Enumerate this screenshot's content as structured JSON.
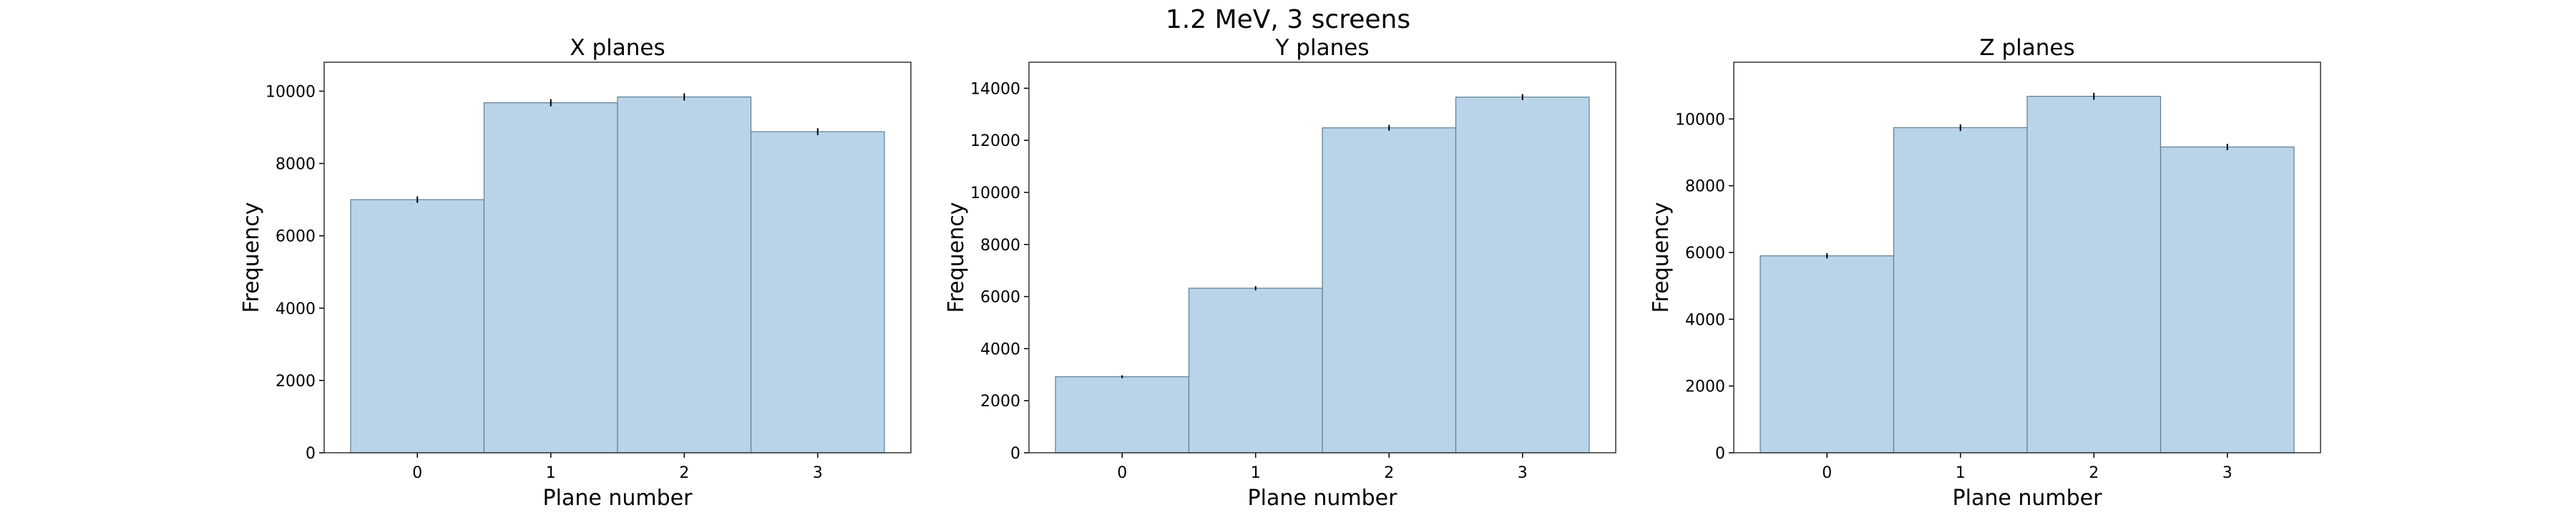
{
  "suptitle": "1.2 MeV, 3 screens",
  "colors": {
    "bar_fill": "#b9d4e8",
    "bar_edge": "#5f7d92",
    "error_bar": "#000000",
    "axes_edge": "#333333"
  },
  "chart_data": [
    {
      "type": "bar",
      "title": "X planes",
      "xlabel": "Plane number",
      "ylabel": "Frequency",
      "categories": [
        "0",
        "1",
        "2",
        "3"
      ],
      "values": [
        7000,
        9680,
        9840,
        8880
      ],
      "errors": [
        90,
        100,
        100,
        95
      ],
      "ylim": [
        0,
        10800
      ],
      "yticks": [
        0,
        2000,
        4000,
        6000,
        8000,
        10000
      ],
      "grid": false,
      "legend": "none"
    },
    {
      "type": "bar",
      "title": "Y planes",
      "xlabel": "Plane number",
      "ylabel": "Frequency",
      "categories": [
        "0",
        "1",
        "2",
        "3"
      ],
      "values": [
        2920,
        6320,
        12480,
        13660
      ],
      "errors": [
        55,
        80,
        110,
        115
      ],
      "ylim": [
        0,
        15000
      ],
      "yticks": [
        0,
        2000,
        4000,
        6000,
        8000,
        10000,
        12000,
        14000
      ],
      "grid": false,
      "legend": "none"
    },
    {
      "type": "bar",
      "title": "Z planes",
      "xlabel": "Plane number",
      "ylabel": "Frequency",
      "categories": [
        "0",
        "1",
        "2",
        "3"
      ],
      "values": [
        5900,
        9740,
        10680,
        9160
      ],
      "errors": [
        80,
        100,
        105,
        95
      ],
      "ylim": [
        0,
        11700
      ],
      "yticks": [
        0,
        2000,
        4000,
        6000,
        8000,
        10000
      ],
      "grid": false,
      "legend": "none"
    }
  ]
}
